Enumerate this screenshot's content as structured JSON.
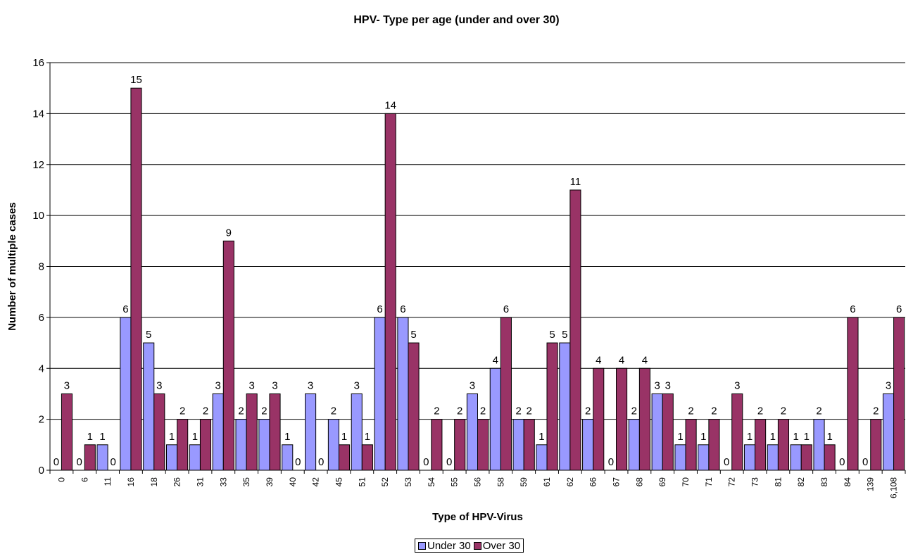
{
  "chart_data": {
    "type": "bar",
    "title": "HPV- Type per age (under and over 30)",
    "xlabel": "Type of HPV-Virus",
    "ylabel": "Number of multiple cases",
    "ylim": [
      0,
      16
    ],
    "yticks": [
      0,
      2,
      4,
      6,
      8,
      10,
      12,
      14,
      16
    ],
    "grid": true,
    "legend_position": "bottom",
    "categories": [
      "0",
      "6",
      "11",
      "16",
      "18",
      "26",
      "31",
      "33",
      "35",
      "39",
      "40",
      "42",
      "45",
      "51",
      "52",
      "53",
      "54",
      "55",
      "56",
      "58",
      "59",
      "61",
      "62",
      "66",
      "67",
      "68",
      "69",
      "70",
      "71",
      "72",
      "73",
      "81",
      "82",
      "83",
      "84",
      "139",
      "6,108"
    ],
    "series": [
      {
        "name": "Under 30",
        "color": "#9999ff",
        "values": [
          0,
          0,
          1,
          6,
          5,
          1,
          1,
          3,
          2,
          2,
          1,
          3,
          2,
          3,
          6,
          6,
          0,
          0,
          3,
          4,
          2,
          1,
          5,
          2,
          0,
          2,
          3,
          1,
          1,
          0,
          1,
          1,
          1,
          2,
          0,
          0,
          3
        ],
        "labels": [
          "0",
          "0",
          "1",
          "6",
          "5",
          "1",
          "1",
          "3",
          "2",
          "2",
          "1",
          "3",
          "2",
          "3",
          "6",
          "6",
          "0",
          "0",
          "3",
          "4",
          "2",
          "1",
          "5",
          "2",
          "",
          "2",
          "3",
          "1",
          "1",
          "",
          "1",
          "1",
          "1",
          "2",
          "",
          "",
          "3"
        ]
      },
      {
        "name": "Over 30",
        "color": "#993366",
        "values": [
          3,
          1,
          0,
          15,
          3,
          2,
          2,
          9,
          3,
          3,
          0,
          0,
          1,
          1,
          14,
          5,
          2,
          2,
          2,
          6,
          2,
          5,
          11,
          4,
          4,
          4,
          3,
          2,
          2,
          3,
          2,
          2,
          1,
          1,
          6,
          2,
          6
        ],
        "labels": [
          "3",
          "1",
          "0",
          "15",
          "3",
          "2",
          "2",
          "9",
          "3",
          "3",
          "0",
          "0",
          "1",
          "1",
          "14",
          "5",
          "2",
          "2",
          "2",
          "6",
          "2",
          "5",
          "11",
          "4",
          "4",
          "4",
          "3",
          "2",
          "2",
          "3",
          "2",
          "2",
          "1",
          "1",
          "6",
          "2",
          "6"
        ]
      }
    ],
    "extra_labels": [
      "0",
      "0",
      "0",
      "0"
    ]
  }
}
